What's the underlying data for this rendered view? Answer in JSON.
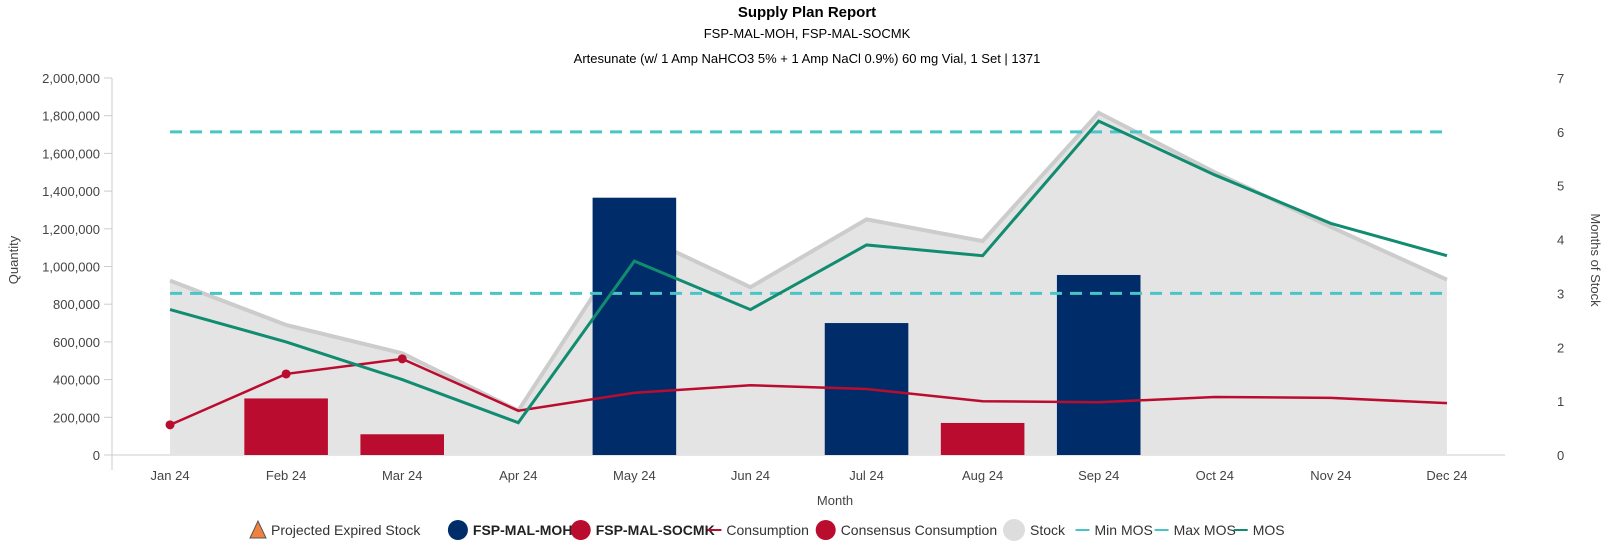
{
  "chart_data": {
    "type": "bar",
    "title": "Supply Plan Report",
    "subtitle": "FSP-MAL-MOH, FSP-MAL-SOCMK",
    "subtitle2": "Artesunate (w/ 1 Amp NaHCO3 5% + 1 Amp NaCl 0.9%) 60 mg Vial, 1 Set | 1371",
    "xlabel": "Month",
    "ylabel": "Quantity",
    "y2label": "Months of Stock",
    "categories": [
      "Jan 24",
      "Feb 24",
      "Mar 24",
      "Apr 24",
      "May 24",
      "Jun 24",
      "Jul 24",
      "Aug 24",
      "Sep 24",
      "Oct 24",
      "Nov 24",
      "Dec 24"
    ],
    "ylim": [
      0,
      2000000
    ],
    "y2lim": [
      0,
      7
    ],
    "y_ticks": [
      "0",
      "200,000",
      "400,000",
      "600,000",
      "800,000",
      "1,000,000",
      "1,200,000",
      "1,400,000",
      "1,600,000",
      "1,800,000",
      "2,000,000"
    ],
    "y2_ticks": [
      "0",
      "1",
      "2",
      "3",
      "4",
      "5",
      "6",
      "7"
    ],
    "grid": false,
    "legend_position": "bottom",
    "colors": {
      "moh": "#002d6a",
      "socmk": "#ba0c2f",
      "stock_fill": "#e4e4e4",
      "stock_line": "#cccccc",
      "minmax": "#49c5c8",
      "mos": "#118c70",
      "expired": "#f0813f"
    },
    "series": [
      {
        "name": "FSP-MAL-MOH",
        "type": "bar",
        "values": [
          0,
          0,
          0,
          0,
          1365000,
          0,
          700000,
          0,
          955000,
          0,
          0,
          0
        ]
      },
      {
        "name": "FSP-MAL-SOCMK",
        "type": "bar",
        "values": [
          0,
          300000,
          110000,
          0,
          0,
          0,
          0,
          170000,
          0,
          0,
          0,
          0
        ]
      },
      {
        "name": "Consumption",
        "type": "line",
        "axis": "left",
        "values": [
          160000,
          430000,
          510000,
          235000,
          330000,
          370000,
          350000,
          285000,
          280000,
          308000,
          303000,
          275000
        ]
      },
      {
        "name": "Consensus Consumption",
        "type": "points",
        "axis": "left",
        "values": [
          160000,
          430000,
          510000,
          null,
          null,
          null,
          null,
          null,
          null,
          null,
          null,
          null
        ]
      },
      {
        "name": "Stock",
        "type": "area",
        "axis": "left",
        "values": [
          925000,
          690000,
          540000,
          235000,
          1180000,
          890000,
          1250000,
          1135000,
          1815000,
          1500000,
          1210000,
          930000
        ]
      },
      {
        "name": "Min MOS",
        "type": "line",
        "axis": "right",
        "values": [
          3,
          3,
          3,
          3,
          3,
          3,
          3,
          3,
          3,
          3,
          3,
          3
        ]
      },
      {
        "name": "Max MOS",
        "type": "line",
        "axis": "right",
        "values": [
          6,
          6,
          6,
          6,
          6,
          6,
          6,
          6,
          6,
          6,
          6,
          6
        ]
      },
      {
        "name": "MOS",
        "type": "line",
        "axis": "right",
        "values": [
          2.7,
          2.1,
          1.4,
          0.6,
          3.6,
          2.7,
          3.9,
          3.7,
          6.2,
          5.2,
          4.3,
          3.7
        ]
      }
    ]
  },
  "legend": {
    "items": [
      {
        "label": "Projected Expired Stock",
        "style": "normal"
      },
      {
        "label": "FSP-MAL-MOH,",
        "style": "bold"
      },
      {
        "label": "FSP-MAL-SOCMK",
        "style": "bold"
      },
      {
        "label": "Consumption",
        "style": "normal"
      },
      {
        "label": "Consensus Consumption",
        "style": "normal"
      },
      {
        "label": "Stock",
        "style": "normal"
      },
      {
        "label": "Min MOS",
        "style": "normal"
      },
      {
        "label": "Max MOS",
        "style": "normal"
      },
      {
        "label": "MOS",
        "style": "normal"
      }
    ]
  }
}
